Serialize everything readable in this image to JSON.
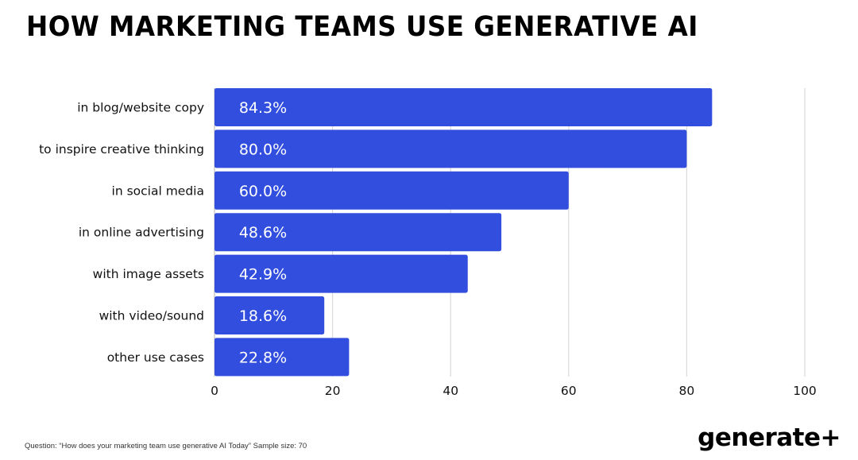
{
  "chart_data": {
    "type": "bar",
    "orientation": "horizontal",
    "title": "HOW MARKETING TEAMS USE GENERATIVE AI",
    "categories": [
      "in blog/website copy",
      "to inspire creative thinking",
      "in social media",
      "in online advertising",
      "with image assets",
      "with video/sound",
      "other use cases"
    ],
    "values": [
      84.3,
      80.0,
      60.0,
      48.6,
      42.9,
      18.6,
      22.8
    ],
    "data_labels": [
      "84.3%",
      "80.0%",
      "60.0%",
      "48.6%",
      "42.9%",
      "18.6%",
      "22.8%"
    ],
    "xlabel": "",
    "ylabel": "",
    "xlim": [
      0,
      100
    ],
    "xticks": [
      0,
      20,
      40,
      60,
      80,
      100
    ],
    "grid": true,
    "legend": "none",
    "bar_color": "#314ede",
    "grid_color": "#d9d9d9"
  },
  "footnote": "Question: “How does your marketing team use generative AI Today” Sample size: 70",
  "brand": "generate+"
}
